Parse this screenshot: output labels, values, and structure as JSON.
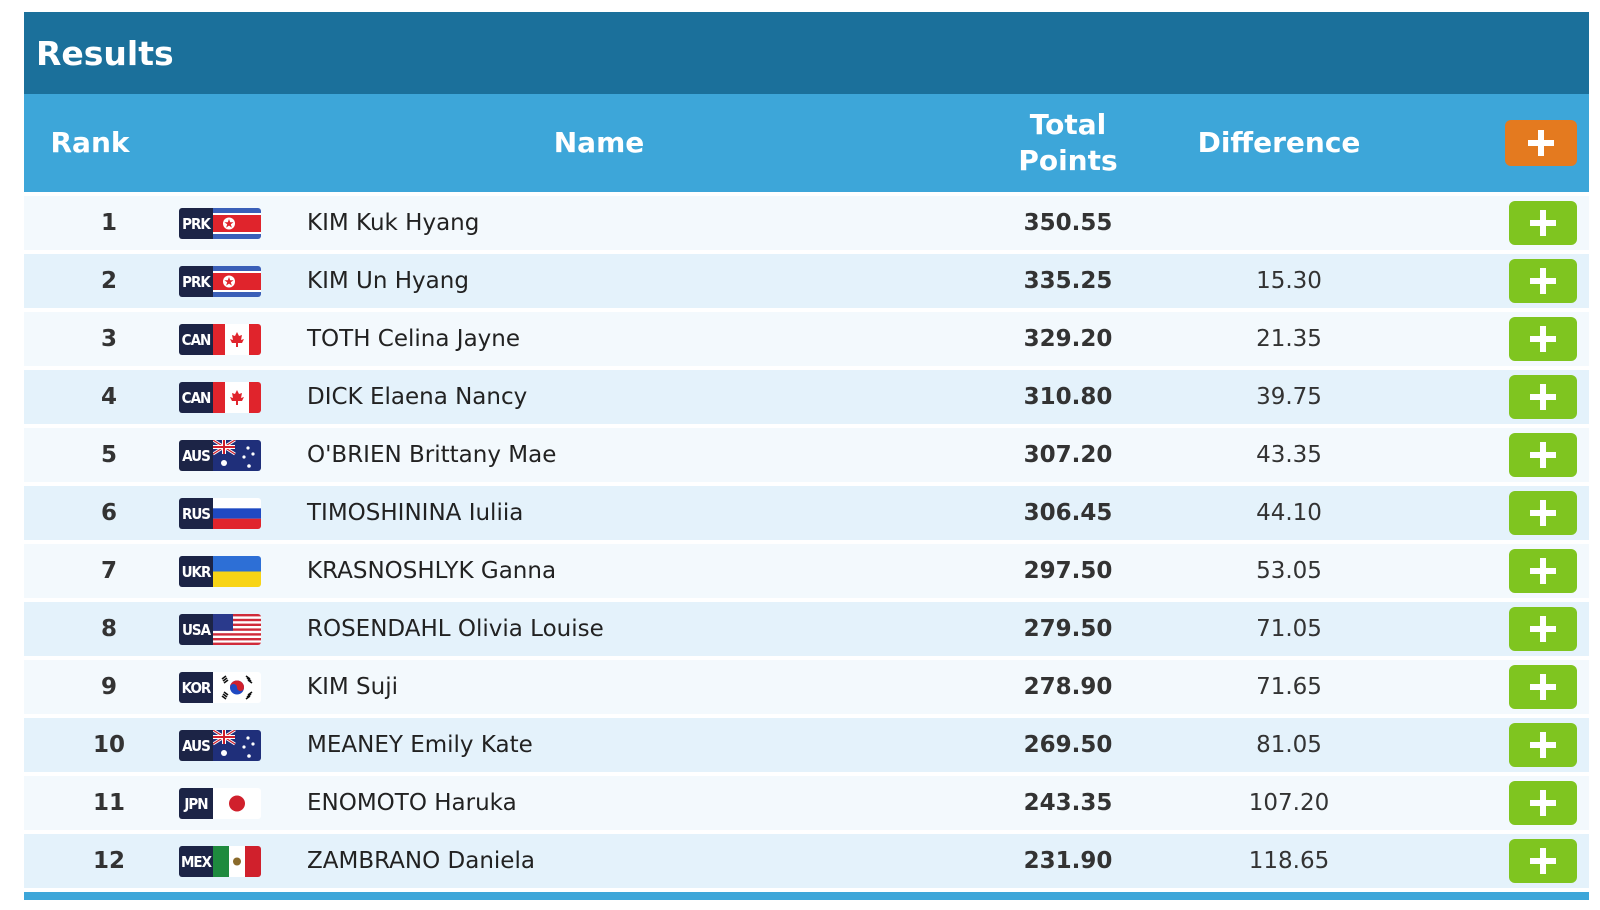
{
  "title": "Results",
  "headers": {
    "rank": "Rank",
    "name": "Name",
    "total": "Total Points",
    "difference": "Difference"
  },
  "colors": {
    "title_bar": "#1b709b",
    "header_bar": "#3da6d9",
    "expand_all": "#e47a1f",
    "row_expand": "#7fc520"
  },
  "expand_icon": "plus-icon",
  "rows": [
    {
      "rank": "1",
      "code": "PRK",
      "name": "KIM Kuk Hyang",
      "total": "350.55",
      "difference": ""
    },
    {
      "rank": "2",
      "code": "PRK",
      "name": "KIM Un Hyang",
      "total": "335.25",
      "difference": "15.30"
    },
    {
      "rank": "3",
      "code": "CAN",
      "name": "TOTH Celina Jayne",
      "total": "329.20",
      "difference": "21.35"
    },
    {
      "rank": "4",
      "code": "CAN",
      "name": "DICK Elaena Nancy",
      "total": "310.80",
      "difference": "39.75"
    },
    {
      "rank": "5",
      "code": "AUS",
      "name": "O'BRIEN Brittany Mae",
      "total": "307.20",
      "difference": "43.35"
    },
    {
      "rank": "6",
      "code": "RUS",
      "name": "TIMOSHININA Iuliia",
      "total": "306.45",
      "difference": "44.10"
    },
    {
      "rank": "7",
      "code": "UKR",
      "name": "KRASNOSHLYK Ganna",
      "total": "297.50",
      "difference": "53.05"
    },
    {
      "rank": "8",
      "code": "USA",
      "name": "ROSENDAHL Olivia Louise",
      "total": "279.50",
      "difference": "71.05"
    },
    {
      "rank": "9",
      "code": "KOR",
      "name": "KIM Suji",
      "total": "278.90",
      "difference": "71.65"
    },
    {
      "rank": "10",
      "code": "AUS",
      "name": "MEANEY Emily Kate",
      "total": "269.50",
      "difference": "81.05"
    },
    {
      "rank": "11",
      "code": "JPN",
      "name": "ENOMOTO Haruka",
      "total": "243.35",
      "difference": "107.20"
    },
    {
      "rank": "12",
      "code": "MEX",
      "name": "ZAMBRANO Daniela",
      "total": "231.90",
      "difference": "118.65"
    }
  ]
}
